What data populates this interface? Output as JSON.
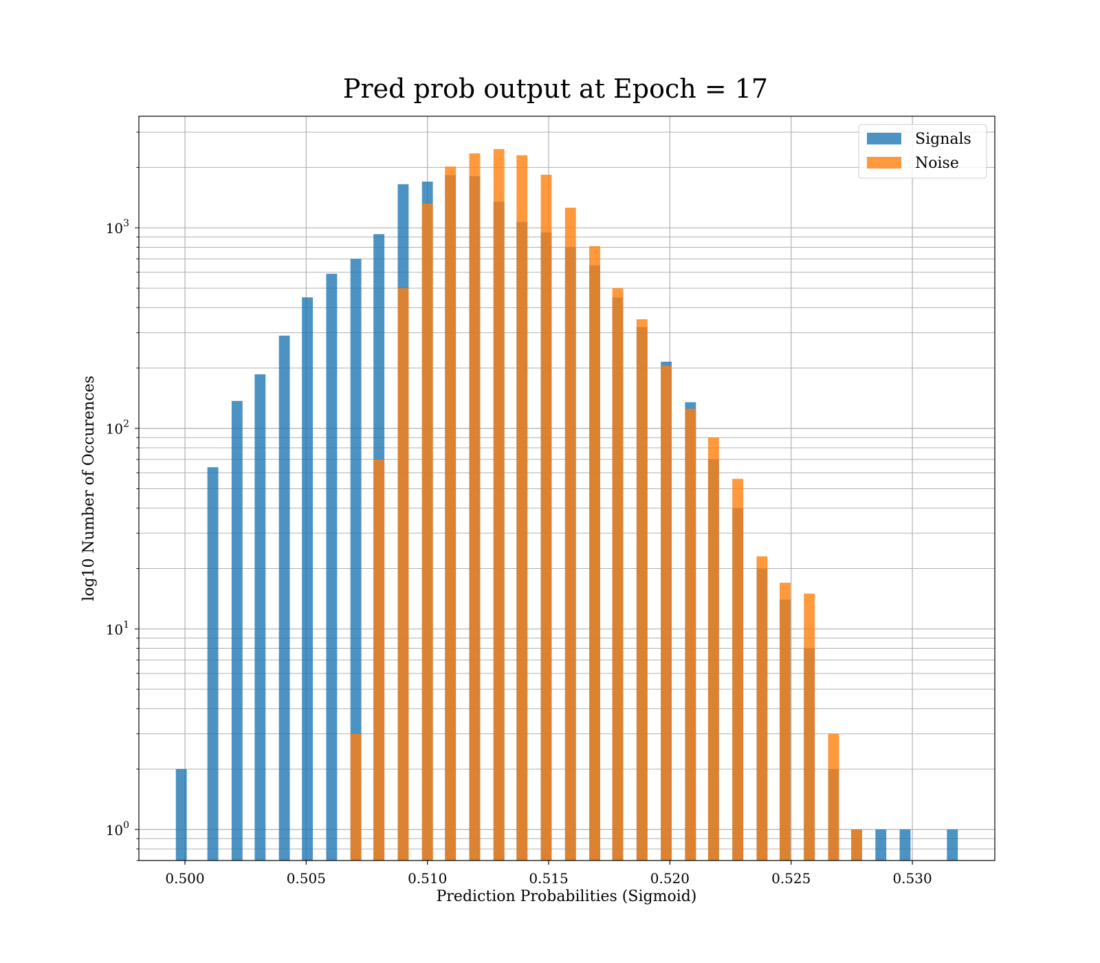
{
  "chart_data": {
    "type": "bar",
    "title": "Pred prob output at Epoch = 17",
    "xlabel": "Prediction Probabilities (Sigmoid)",
    "ylabel": "log10 Number of Occurences",
    "yscale": "log",
    "xlim": [
      0.4981,
      0.5334
    ],
    "ylim": [
      0.7,
      3600
    ],
    "x_ticks": [
      {
        "value": 0.5,
        "label": "0.500"
      },
      {
        "value": 0.505,
        "label": "0.505"
      },
      {
        "value": 0.51,
        "label": "0.510"
      },
      {
        "value": 0.515,
        "label": "0.515"
      },
      {
        "value": 0.52,
        "label": "0.520"
      },
      {
        "value": 0.525,
        "label": "0.525"
      },
      {
        "value": 0.53,
        "label": "0.530"
      }
    ],
    "y_ticks": [
      {
        "value": 1,
        "base": "10",
        "exp": "0"
      },
      {
        "value": 10,
        "base": "10",
        "exp": "1"
      },
      {
        "value": 100,
        "base": "10",
        "exp": "2"
      },
      {
        "value": 1000,
        "base": "10",
        "exp": "3"
      }
    ],
    "bar_width": 0.00045,
    "grid": true,
    "legend_position": "top-right",
    "series": [
      {
        "name": "Signals",
        "color": "#1f77b4",
        "opacity": 0.8,
        "x": [
          0.49985,
          0.50115,
          0.50215,
          0.5031,
          0.5041,
          0.50505,
          0.50605,
          0.50705,
          0.508,
          0.509,
          0.51,
          0.51095,
          0.51195,
          0.51295,
          0.5139,
          0.5149,
          0.5159,
          0.5169,
          0.51785,
          0.51885,
          0.51985,
          0.52085,
          0.5218,
          0.5228,
          0.5238,
          0.52475,
          0.52575,
          0.52675,
          0.5277,
          0.5287,
          0.5297,
          0.53165
        ],
        "values": [
          2,
          64,
          137,
          186,
          290,
          450,
          590,
          700,
          930,
          1650,
          1700,
          1830,
          1810,
          1350,
          1070,
          950,
          800,
          650,
          450,
          320,
          215,
          135,
          70,
          40,
          20,
          14,
          8,
          2,
          1,
          1,
          1,
          1
        ]
      },
      {
        "name": "Noise",
        "color": "#ff7f0e",
        "opacity": 0.8,
        "x": [
          0.50705,
          0.508,
          0.509,
          0.51,
          0.51095,
          0.51195,
          0.51295,
          0.5139,
          0.5149,
          0.5159,
          0.5169,
          0.51785,
          0.51885,
          0.51985,
          0.52085,
          0.5218,
          0.5228,
          0.5238,
          0.52475,
          0.52575,
          0.52675,
          0.5277
        ],
        "values": [
          3,
          70,
          500,
          1320,
          2020,
          2350,
          2470,
          2300,
          1840,
          1260,
          810,
          500,
          350,
          205,
          125,
          90,
          56,
          23,
          17,
          15,
          3,
          1
        ]
      }
    ]
  }
}
